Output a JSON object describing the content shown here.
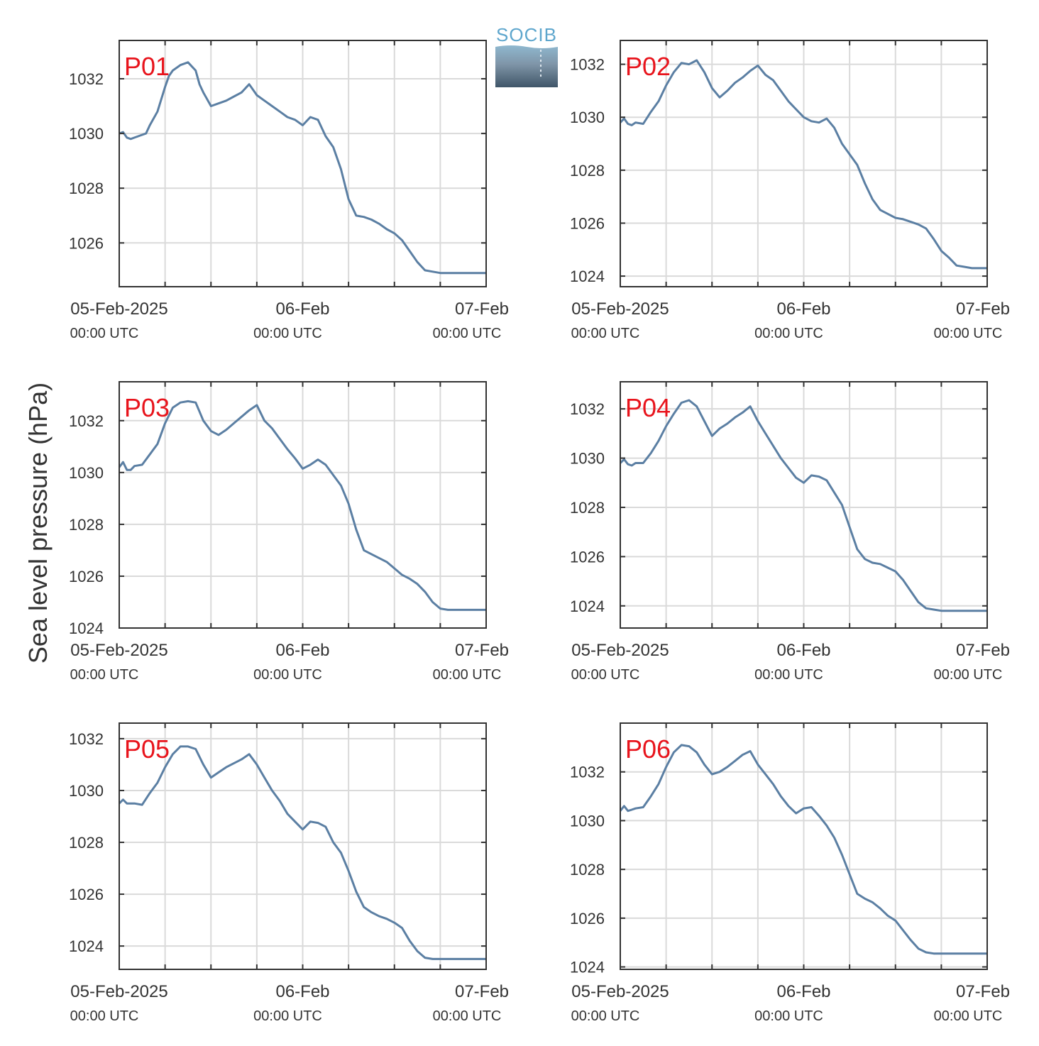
{
  "figure": {
    "ylabel": "Sea level pressure (hPa)",
    "logo_text": "SOCIB",
    "colors": {
      "series": "#5b7fa3",
      "panel_label": "#e8141c",
      "grid": "#dadada",
      "axis": "#333333"
    }
  },
  "chart_data": [
    {
      "type": "line",
      "title": "P01",
      "ylabel": "Sea level pressure (hPa)",
      "xlim": [
        0,
        48
      ],
      "ylim": [
        1024.4,
        1033.4
      ],
      "yticks": [
        1026,
        1028,
        1030,
        1032
      ],
      "xticks": [
        0,
        24,
        48
      ],
      "xtick_labels": [
        [
          "05-Feb-2025",
          "00:00 UTC"
        ],
        [
          "06-Feb",
          "00:00 UTC"
        ],
        [
          "07-Feb",
          "00:00 UTC"
        ]
      ],
      "grid": true,
      "x": [
        0,
        0.5,
        1,
        1.5,
        2,
        3,
        3.5,
        4,
        5,
        6,
        6.5,
        7,
        8,
        9,
        10,
        10.5,
        11,
        12,
        13,
        14,
        15,
        16,
        17,
        18,
        19,
        20,
        21,
        22,
        23,
        24,
        25,
        26,
        27,
        28,
        29,
        30,
        31,
        32,
        33,
        34,
        35,
        36,
        37,
        38,
        39,
        40,
        41,
        42,
        43,
        44,
        45,
        46,
        47,
        48
      ],
      "values": [
        1030.0,
        1030.05,
        1029.85,
        1029.8,
        1029.85,
        1029.95,
        1030.0,
        1030.3,
        1030.8,
        1031.7,
        1032.1,
        1032.3,
        1032.5,
        1032.6,
        1032.3,
        1031.8,
        1031.5,
        1031.0,
        1031.1,
        1031.2,
        1031.35,
        1031.5,
        1031.8,
        1031.4,
        1031.2,
        1031.0,
        1030.8,
        1030.6,
        1030.5,
        1030.3,
        1030.6,
        1030.5,
        1029.9,
        1029.5,
        1028.7,
        1027.6,
        1027.0,
        1026.95,
        1026.85,
        1026.7,
        1026.5,
        1026.35,
        1026.1,
        1025.7,
        1025.3,
        1025.0,
        1024.95,
        1024.9,
        1024.9,
        1024.9,
        1024.9,
        1024.9,
        1024.9,
        1024.9
      ]
    },
    {
      "type": "line",
      "title": "P02",
      "ylabel": "Sea level pressure (hPa)",
      "xlim": [
        0,
        48
      ],
      "ylim": [
        1023.6,
        1032.9
      ],
      "yticks": [
        1024,
        1026,
        1028,
        1030,
        1032
      ],
      "xticks": [
        0,
        24,
        48
      ],
      "xtick_labels": [
        [
          "05-Feb-2025",
          "00:00 UTC"
        ],
        [
          "06-Feb",
          "00:00 UTC"
        ],
        [
          "07-Feb",
          "00:00 UTC"
        ]
      ],
      "grid": true,
      "x": [
        0,
        0.5,
        1,
        1.5,
        2,
        3,
        4,
        5,
        6,
        7,
        8,
        9,
        10,
        11,
        12,
        13,
        14,
        15,
        16,
        17,
        18,
        19,
        20,
        21,
        22,
        23,
        24,
        25,
        26,
        27,
        28,
        29,
        30,
        31,
        32,
        33,
        34,
        35,
        36,
        37,
        38,
        39,
        40,
        41,
        42,
        43,
        44,
        45,
        46,
        47,
        48
      ],
      "values": [
        1029.8,
        1029.95,
        1029.75,
        1029.7,
        1029.8,
        1029.75,
        1030.2,
        1030.6,
        1031.2,
        1031.7,
        1032.05,
        1032.0,
        1032.15,
        1031.7,
        1031.1,
        1030.75,
        1031.0,
        1031.3,
        1031.5,
        1031.75,
        1031.95,
        1031.6,
        1031.4,
        1031.0,
        1030.6,
        1030.3,
        1030.0,
        1029.85,
        1029.8,
        1029.95,
        1029.6,
        1029.0,
        1028.6,
        1028.2,
        1027.5,
        1026.9,
        1026.5,
        1026.35,
        1026.2,
        1026.15,
        1026.05,
        1025.95,
        1025.8,
        1025.4,
        1024.95,
        1024.7,
        1024.4,
        1024.35,
        1024.3,
        1024.3,
        1024.3
      ]
    },
    {
      "type": "line",
      "title": "P03",
      "ylabel": "Sea level pressure (hPa)",
      "xlim": [
        0,
        48
      ],
      "ylim": [
        1024.0,
        1033.5
      ],
      "yticks": [
        1024,
        1026,
        1028,
        1030,
        1032
      ],
      "xticks": [
        0,
        24,
        48
      ],
      "xtick_labels": [
        [
          "05-Feb-2025",
          "00:00 UTC"
        ],
        [
          "06-Feb",
          "00:00 UTC"
        ],
        [
          "07-Feb",
          "00:00 UTC"
        ]
      ],
      "grid": true,
      "x": [
        0,
        0.5,
        1,
        1.5,
        2,
        3,
        4,
        5,
        6,
        7,
        8,
        9,
        10,
        11,
        12,
        13,
        14,
        15,
        16,
        17,
        18,
        19,
        20,
        21,
        22,
        23,
        24,
        25,
        26,
        27,
        28,
        29,
        30,
        31,
        32,
        33,
        34,
        35,
        36,
        37,
        38,
        39,
        40,
        41,
        42,
        43,
        44,
        45,
        46,
        47,
        48
      ],
      "values": [
        1030.2,
        1030.4,
        1030.1,
        1030.1,
        1030.25,
        1030.3,
        1030.7,
        1031.1,
        1031.9,
        1032.5,
        1032.7,
        1032.75,
        1032.7,
        1032.0,
        1031.6,
        1031.45,
        1031.65,
        1031.9,
        1032.15,
        1032.4,
        1032.6,
        1032.0,
        1031.7,
        1031.3,
        1030.9,
        1030.55,
        1030.15,
        1030.3,
        1030.5,
        1030.3,
        1029.9,
        1029.5,
        1028.8,
        1027.8,
        1027.0,
        1026.85,
        1026.7,
        1026.55,
        1026.3,
        1026.05,
        1025.9,
        1025.7,
        1025.4,
        1025.0,
        1024.75,
        1024.7,
        1024.7,
        1024.7,
        1024.7,
        1024.7,
        1024.7
      ]
    },
    {
      "type": "line",
      "title": "P04",
      "ylabel": "Sea level pressure (hPa)",
      "xlim": [
        0,
        48
      ],
      "ylim": [
        1023.1,
        1033.1
      ],
      "yticks": [
        1024,
        1026,
        1028,
        1030,
        1032
      ],
      "xticks": [
        0,
        24,
        48
      ],
      "xtick_labels": [
        [
          "05-Feb-2025",
          "00:00 UTC"
        ],
        [
          "06-Feb",
          "00:00 UTC"
        ],
        [
          "07-Feb",
          "00:00 UTC"
        ]
      ],
      "grid": true,
      "x": [
        0,
        0.5,
        1,
        1.5,
        2,
        3,
        4,
        5,
        6,
        7,
        8,
        9,
        10,
        11,
        12,
        13,
        14,
        15,
        16,
        17,
        18,
        19,
        20,
        21,
        22,
        23,
        24,
        25,
        26,
        27,
        28,
        29,
        30,
        31,
        32,
        33,
        34,
        35,
        36,
        37,
        38,
        39,
        40,
        41,
        42,
        43,
        44,
        45,
        46,
        47,
        48
      ],
      "values": [
        1029.8,
        1029.95,
        1029.75,
        1029.7,
        1029.8,
        1029.8,
        1030.2,
        1030.7,
        1031.3,
        1031.8,
        1032.25,
        1032.35,
        1032.1,
        1031.5,
        1030.9,
        1031.2,
        1031.4,
        1031.65,
        1031.85,
        1032.1,
        1031.5,
        1031.0,
        1030.5,
        1030.0,
        1029.6,
        1029.2,
        1029.0,
        1029.3,
        1029.25,
        1029.1,
        1028.6,
        1028.1,
        1027.2,
        1026.3,
        1025.9,
        1025.75,
        1025.7,
        1025.55,
        1025.4,
        1025.05,
        1024.6,
        1024.15,
        1023.9,
        1023.85,
        1023.8,
        1023.8,
        1023.8,
        1023.8,
        1023.8,
        1023.8,
        1023.8
      ]
    },
    {
      "type": "line",
      "title": "P05",
      "ylabel": "Sea level pressure (hPa)",
      "xlim": [
        0,
        48
      ],
      "ylim": [
        1023.1,
        1032.6
      ],
      "yticks": [
        1024,
        1026,
        1028,
        1030,
        1032
      ],
      "xticks": [
        0,
        24,
        48
      ],
      "xtick_labels": [
        [
          "05-Feb-2025",
          "00:00 UTC"
        ],
        [
          "06-Feb",
          "00:00 UTC"
        ],
        [
          "07-Feb",
          "00:00 UTC"
        ]
      ],
      "grid": true,
      "x": [
        0,
        0.5,
        1,
        1.5,
        2,
        3,
        4,
        5,
        6,
        7,
        8,
        9,
        10,
        11,
        12,
        13,
        14,
        15,
        16,
        17,
        18,
        19,
        20,
        21,
        22,
        23,
        24,
        25,
        26,
        27,
        28,
        29,
        30,
        31,
        32,
        33,
        34,
        35,
        36,
        37,
        38,
        39,
        40,
        41,
        42,
        43,
        44,
        45,
        46,
        47,
        48
      ],
      "values": [
        1029.5,
        1029.65,
        1029.5,
        1029.5,
        1029.5,
        1029.45,
        1029.9,
        1030.3,
        1030.9,
        1031.4,
        1031.7,
        1031.7,
        1031.6,
        1031.0,
        1030.5,
        1030.7,
        1030.9,
        1031.05,
        1031.2,
        1031.4,
        1031.0,
        1030.5,
        1030.0,
        1029.6,
        1029.1,
        1028.8,
        1028.5,
        1028.8,
        1028.75,
        1028.6,
        1028.0,
        1027.6,
        1026.9,
        1026.1,
        1025.5,
        1025.3,
        1025.15,
        1025.05,
        1024.9,
        1024.7,
        1024.2,
        1023.8,
        1023.55,
        1023.5,
        1023.5,
        1023.5,
        1023.5,
        1023.5,
        1023.5,
        1023.5,
        1023.5
      ]
    },
    {
      "type": "line",
      "title": "P06",
      "ylabel": "Sea level pressure (hPa)",
      "xlim": [
        0,
        48
      ],
      "ylim": [
        1023.9,
        1034.0
      ],
      "yticks": [
        1024,
        1026,
        1028,
        1030,
        1032
      ],
      "xticks": [
        0,
        24,
        48
      ],
      "xtick_labels": [
        [
          "05-Feb-2025",
          "00:00 UTC"
        ],
        [
          "06-Feb",
          "00:00 UTC"
        ],
        [
          "07-Feb",
          "00:00 UTC"
        ]
      ],
      "grid": true,
      "x": [
        0,
        0.5,
        1,
        1.5,
        2,
        3,
        4,
        5,
        6,
        7,
        8,
        9,
        10,
        11,
        12,
        13,
        14,
        15,
        16,
        17,
        18,
        19,
        20,
        21,
        22,
        23,
        24,
        25,
        26,
        27,
        28,
        29,
        30,
        31,
        32,
        33,
        34,
        35,
        36,
        37,
        38,
        39,
        40,
        41,
        42,
        43,
        44,
        45,
        46,
        47,
        48
      ],
      "values": [
        1030.4,
        1030.6,
        1030.4,
        1030.45,
        1030.5,
        1030.55,
        1031.0,
        1031.5,
        1032.2,
        1032.8,
        1033.1,
        1033.05,
        1032.8,
        1032.3,
        1031.9,
        1032.0,
        1032.2,
        1032.45,
        1032.7,
        1032.85,
        1032.3,
        1031.9,
        1031.5,
        1031.0,
        1030.6,
        1030.3,
        1030.5,
        1030.55,
        1030.2,
        1029.8,
        1029.3,
        1028.6,
        1027.8,
        1027.0,
        1026.8,
        1026.65,
        1026.4,
        1026.1,
        1025.9,
        1025.5,
        1025.1,
        1024.75,
        1024.6,
        1024.55,
        1024.55,
        1024.55,
        1024.55,
        1024.55,
        1024.55,
        1024.55,
        1024.55
      ]
    }
  ]
}
